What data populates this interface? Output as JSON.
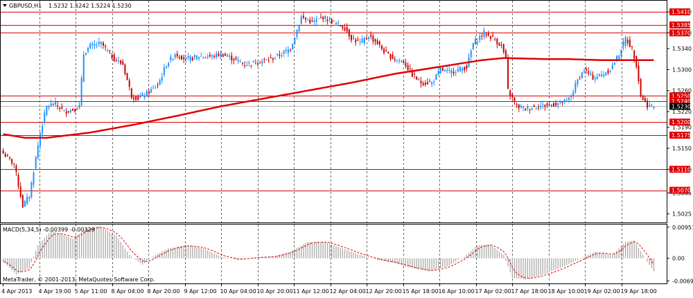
{
  "chart_data": {
    "type": "candlestick",
    "symbol_header": "GBPUSD,H1",
    "ohlc_header": "1.5232 1.5242 1.5224 1.5230",
    "price_axis": {
      "ylim": [
        1.501,
        1.543
      ],
      "ticks": [
        "1.5410",
        "1.5370",
        "1.5340",
        "1.5300",
        "1.5260",
        "1.5220",
        "1.5190",
        "1.5150",
        "1.5110",
        "1.5065",
        "1.5025"
      ],
      "current_price": "1.5230"
    },
    "time_labels": [
      "4 Apr 2013",
      "4 Apr 19:00",
      "5 Apr 11:00",
      "8 Apr 04:00",
      "8 Apr 20:00",
      "9 Apr 12:00",
      "10 Apr 04:00",
      "10 Apr 20:00",
      "11 Apr 12:00",
      "12 Apr 04:00",
      "12 Apr 20:00",
      "15 Apr 18:00",
      "16 Apr 10:00",
      "17 Apr 02:00",
      "17 Apr 18:00",
      "18 Apr 10:00",
      "19 Apr 02:00",
      "19 Apr 18:00"
    ],
    "horizontal_levels": [
      {
        "price": 1.541,
        "label": "1.5410"
      },
      {
        "price": 1.5385,
        "label": "1.5385"
      },
      {
        "price": 1.537,
        "label": "1.5370"
      },
      {
        "price": 1.525,
        "label": "1.5250"
      },
      {
        "price": 1.524,
        "label": "1.5240"
      },
      {
        "price": 1.52,
        "label": "1.5200"
      },
      {
        "price": 1.5175,
        "label": "1.5175"
      },
      {
        "price": 1.511,
        "label": "1.5110"
      },
      {
        "price": 1.507,
        "label": "1.5070"
      }
    ],
    "price_anchors": [
      [
        0,
        1.514
      ],
      [
        5,
        1.512
      ],
      [
        9,
        1.504
      ],
      [
        12,
        1.506
      ],
      [
        17,
        1.518
      ],
      [
        20,
        1.523
      ],
      [
        24,
        1.5235
      ],
      [
        28,
        1.522
      ],
      [
        33,
        1.5225
      ],
      [
        35,
        1.523
      ],
      [
        37,
        1.533
      ],
      [
        40,
        1.5345
      ],
      [
        45,
        1.535
      ],
      [
        51,
        1.532
      ],
      [
        55,
        1.531
      ],
      [
        59,
        1.525
      ],
      [
        62,
        1.5245
      ],
      [
        66,
        1.5255
      ],
      [
        71,
        1.527
      ],
      [
        75,
        1.531
      ],
      [
        79,
        1.533
      ],
      [
        84,
        1.532
      ],
      [
        90,
        1.5325
      ],
      [
        96,
        1.5325
      ],
      [
        100,
        1.533
      ],
      [
        106,
        1.532
      ],
      [
        111,
        1.531
      ],
      [
        117,
        1.5315
      ],
      [
        123,
        1.532
      ],
      [
        128,
        1.533
      ],
      [
        132,
        1.534
      ],
      [
        137,
        1.54
      ],
      [
        142,
        1.539
      ],
      [
        147,
        1.54
      ],
      [
        152,
        1.539
      ],
      [
        157,
        1.538
      ],
      [
        160,
        1.536
      ],
      [
        164,
        1.535
      ],
      [
        168,
        1.5365
      ],
      [
        172,
        1.535
      ],
      [
        176,
        1.533
      ],
      [
        180,
        1.532
      ],
      [
        184,
        1.5315
      ],
      [
        188,
        1.529
      ],
      [
        192,
        1.5275
      ],
      [
        197,
        1.5275
      ],
      [
        201,
        1.53
      ],
      [
        205,
        1.5295
      ],
      [
        209,
        1.53
      ],
      [
        213,
        1.5305
      ],
      [
        216,
        1.535
      ],
      [
        221,
        1.537
      ],
      [
        225,
        1.536
      ],
      [
        229,
        1.5345
      ],
      [
        231,
        1.532
      ],
      [
        232,
        1.526
      ],
      [
        236,
        1.523
      ],
      [
        240,
        1.5225
      ],
      [
        245,
        1.523
      ],
      [
        250,
        1.5232
      ],
      [
        254,
        1.5235
      ],
      [
        259,
        1.524
      ],
      [
        261,
        1.525
      ],
      [
        264,
        1.528
      ],
      [
        267,
        1.53
      ],
      [
        271,
        1.5285
      ],
      [
        275,
        1.529
      ],
      [
        279,
        1.53
      ],
      [
        283,
        1.533
      ],
      [
        286,
        1.536
      ],
      [
        289,
        1.534
      ],
      [
        291,
        1.531
      ],
      [
        293,
        1.525
      ],
      [
        296,
        1.5232
      ],
      [
        299,
        1.523
      ]
    ],
    "ma_anchors": [
      [
        0,
        1.5177
      ],
      [
        10,
        1.517
      ],
      [
        20,
        1.517
      ],
      [
        40,
        1.518
      ],
      [
        60,
        1.5195
      ],
      [
        80,
        1.5212
      ],
      [
        100,
        1.523
      ],
      [
        120,
        1.5245
      ],
      [
        140,
        1.526
      ],
      [
        160,
        1.5275
      ],
      [
        180,
        1.5292
      ],
      [
        200,
        1.5305
      ],
      [
        220,
        1.5318
      ],
      [
        230,
        1.5322
      ],
      [
        250,
        1.532
      ],
      [
        260,
        1.532
      ],
      [
        275,
        1.5318
      ],
      [
        290,
        1.5318
      ],
      [
        299,
        1.5318
      ]
    ],
    "macd": {
      "label": "MACD(5,34,5) -0.00399 -0.00329",
      "ylim": [
        -0.0075,
        0.0101
      ],
      "ticks": [
        "0.00951",
        "0.00",
        "-0.00693"
      ],
      "anchors": [
        [
          0,
          -0.001
        ],
        [
          6,
          -0.005
        ],
        [
          12,
          -0.003
        ],
        [
          16,
          0.004
        ],
        [
          22,
          0.0085
        ],
        [
          32,
          0.006
        ],
        [
          38,
          0.009
        ],
        [
          44,
          0.0098
        ],
        [
          52,
          0.007
        ],
        [
          58,
          0.001
        ],
        [
          64,
          -0.002
        ],
        [
          70,
          0.001
        ],
        [
          76,
          0.003
        ],
        [
          84,
          0.004
        ],
        [
          92,
          0.003
        ],
        [
          100,
          0.0005
        ],
        [
          108,
          -0.0005
        ],
        [
          116,
          0.0003
        ],
        [
          124,
          0.0005
        ],
        [
          132,
          0.002
        ],
        [
          140,
          0.005
        ],
        [
          148,
          0.005
        ],
        [
          156,
          0.003
        ],
        [
          164,
          0.001
        ],
        [
          172,
          -0.0005
        ],
        [
          180,
          -0.0015
        ],
        [
          188,
          -0.003
        ],
        [
          196,
          -0.004
        ],
        [
          204,
          -0.0025
        ],
        [
          212,
          0.0005
        ],
        [
          218,
          0.004
        ],
        [
          224,
          0.0042
        ],
        [
          230,
          0.001
        ],
        [
          234,
          -0.006
        ],
        [
          240,
          -0.0065
        ],
        [
          248,
          -0.005
        ],
        [
          256,
          -0.003
        ],
        [
          264,
          -0.0005
        ],
        [
          272,
          0.002
        ],
        [
          280,
          0.001
        ],
        [
          286,
          0.005
        ],
        [
          290,
          0.0055
        ],
        [
          294,
          0.001
        ],
        [
          299,
          -0.004
        ]
      ]
    },
    "colors": {
      "bull": "#1e90ff",
      "bear": "#cc0000",
      "ma": "#e00000",
      "level": "#e00000",
      "grid": "#000000",
      "macd_bar": "#a9a9a9",
      "signal": "#e00000"
    }
  },
  "copyright": "MetaTrader, © 2001-2013, MetaQuotes Software Corp."
}
